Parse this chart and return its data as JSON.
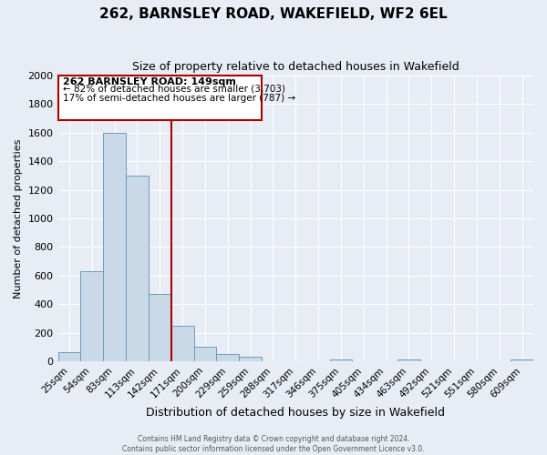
{
  "title": "262, BARNSLEY ROAD, WAKEFIELD, WF2 6EL",
  "subtitle": "Size of property relative to detached houses in Wakefield",
  "xlabel": "Distribution of detached houses by size in Wakefield",
  "ylabel": "Number of detached properties",
  "bar_labels": [
    "25sqm",
    "54sqm",
    "83sqm",
    "113sqm",
    "142sqm",
    "171sqm",
    "200sqm",
    "229sqm",
    "259sqm",
    "288sqm",
    "317sqm",
    "346sqm",
    "375sqm",
    "405sqm",
    "434sqm",
    "463sqm",
    "492sqm",
    "521sqm",
    "551sqm",
    "580sqm",
    "609sqm"
  ],
  "bar_values": [
    65,
    630,
    1600,
    1300,
    470,
    250,
    100,
    50,
    30,
    0,
    0,
    0,
    15,
    0,
    0,
    15,
    0,
    0,
    0,
    0,
    15
  ],
  "bar_color": "#c9d9e8",
  "bar_edgecolor": "#6a9cbf",
  "ylim": [
    0,
    2000
  ],
  "yticks": [
    0,
    200,
    400,
    600,
    800,
    1000,
    1200,
    1400,
    1600,
    1800,
    2000
  ],
  "vline_x_idx": 4.5,
  "vline_color": "#aa0000",
  "annotation_line1": "262 BARNSLEY ROAD: 149sqm",
  "annotation_line2": "← 82% of detached houses are smaller (3,703)",
  "annotation_line3": "17% of semi-detached houses are larger (787) →",
  "annotation_box_color": "#aa0000",
  "footer1": "Contains HM Land Registry data © Crown copyright and database right 2024.",
  "footer2": "Contains public sector information licensed under the Open Government Licence v3.0.",
  "bg_color": "#e8edf5",
  "plot_bg_color": "#e8edf5",
  "grid_color": "#ffffff",
  "title_fontsize": 11,
  "subtitle_fontsize": 9
}
